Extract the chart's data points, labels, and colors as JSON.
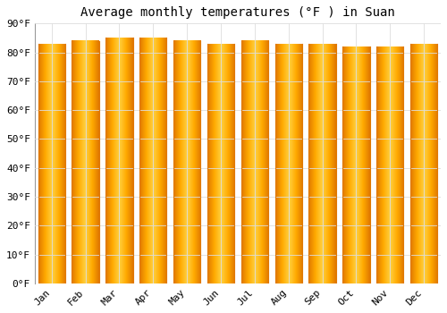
{
  "title": "Average monthly temperatures (°F ) in Suan",
  "months": [
    "Jan",
    "Feb",
    "Mar",
    "Apr",
    "May",
    "Jun",
    "Jul",
    "Aug",
    "Sep",
    "Oct",
    "Nov",
    "Dec"
  ],
  "values": [
    83,
    84,
    85,
    85,
    84,
    83,
    84,
    83,
    83,
    82,
    82,
    83
  ],
  "bar_color_edge": "#E07800",
  "bar_color_center": "#FFD040",
  "bar_color_mid": "#FFAA00",
  "ylim": [
    0,
    90
  ],
  "yticks": [
    0,
    10,
    20,
    30,
    40,
    50,
    60,
    70,
    80,
    90
  ],
  "ytick_labels": [
    "0°F",
    "10°F",
    "20°F",
    "30°F",
    "40°F",
    "50°F",
    "60°F",
    "70°F",
    "80°F",
    "90°F"
  ],
  "background_color": "#FFFFFF",
  "grid_color": "#DDDDDD",
  "title_fontsize": 10,
  "tick_fontsize": 8,
  "bar_width": 0.8
}
